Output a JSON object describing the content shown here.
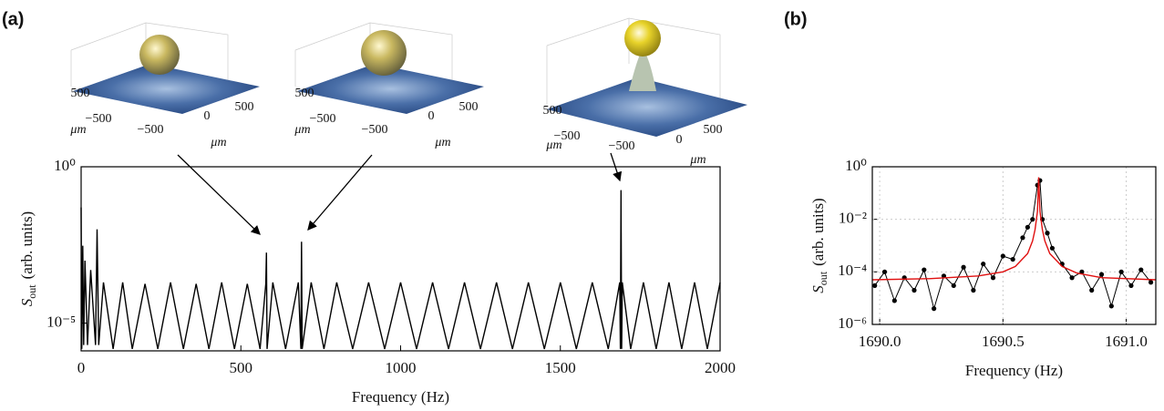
{
  "chart_data": [
    {
      "type": "line",
      "panel_label": "(a)",
      "xlabel": "Frequency (Hz)",
      "ylabel": "S",
      "ylabel_sub": "out",
      "ylabel_unit": "(arb. units)",
      "log_y": true,
      "grid": false,
      "xlim": [
        0,
        2000
      ],
      "xticks": [
        0,
        500,
        1000,
        1500,
        2000
      ],
      "ylim": [
        1.3e-06,
        1
      ],
      "yticks": [
        {
          "value": 1,
          "label": "10⁰"
        },
        {
          "value": 1e-05,
          "label": "10⁻⁵"
        }
      ],
      "series": [
        {
          "color": "#000000",
          "markers": false,
          "x": [
            0,
            2,
            5,
            8,
            12,
            20,
            30,
            45,
            50,
            55,
            70,
            100,
            130,
            160,
            200,
            240,
            280,
            320,
            360,
            400,
            440,
            480,
            520,
            560,
            578,
            580,
            582,
            600,
            640,
            680,
            688,
            690,
            692,
            720,
            760,
            800,
            850,
            900,
            950,
            1000,
            1050,
            1100,
            1150,
            1200,
            1250,
            1300,
            1350,
            1400,
            1450,
            1500,
            1550,
            1600,
            1650,
            1686,
            1688,
            1690,
            1692,
            1694,
            1720,
            1760,
            1800,
            1840,
            1880,
            1920,
            1960,
            2000
          ],
          "values": [
            0.05,
            1.5e-06,
            0.003,
            2e-06,
            0.001,
            2e-06,
            0.0005,
            2e-06,
            0.01,
            2e-06,
            0.0002,
            1.5e-06,
            0.0002,
            1.5e-06,
            0.00018,
            1.5e-06,
            0.0002,
            1.5e-06,
            0.00018,
            1.5e-06,
            0.0002,
            1.5e-06,
            0.00018,
            1.5e-06,
            0.00018,
            0.0018,
            1.5e-06,
            0.0002,
            1.5e-06,
            0.0002,
            1.5e-06,
            0.004,
            1.5e-06,
            0.0002,
            1.5e-06,
            0.0002,
            1.5e-06,
            0.0002,
            1.5e-06,
            0.0002,
            1.5e-06,
            0.0002,
            1.5e-06,
            0.0002,
            1.5e-06,
            0.0002,
            1.5e-06,
            0.0002,
            1.5e-06,
            0.0002,
            1.5e-06,
            0.0002,
            1.5e-06,
            0.0002,
            1.5e-06,
            0.18,
            1.5e-06,
            0.0002,
            1.5e-06,
            0.0002,
            1.5e-06,
            0.0002,
            1.5e-06,
            0.0002,
            1.5e-06,
            0.0002
          ]
        }
      ],
      "insets": [
        {
          "texts": [
            "500",
            "−500",
            "−500",
            "0",
            "500",
            "μm",
            "μm"
          ]
        },
        {
          "texts": [
            "500",
            "−500",
            "−500",
            "0",
            "500",
            "μm",
            "μm"
          ]
        },
        {
          "texts": [
            "500",
            "−500",
            "−500",
            "0",
            "500",
            "μm",
            "μm"
          ]
        }
      ]
    },
    {
      "type": "line",
      "panel_label": "(b)",
      "xlabel": "Frequency (Hz)",
      "ylabel": "S",
      "ylabel_sub": "out",
      "ylabel_unit": "(arb. units)",
      "log_y": true,
      "grid": true,
      "xlim": [
        1689.97,
        1691.12
      ],
      "xticks": [
        {
          "value": 1690,
          "label": "1690.0"
        },
        1690.5,
        {
          "value": 1691,
          "label": "1691.0"
        }
      ],
      "ylim": [
        1e-06,
        1
      ],
      "yticks": [
        {
          "value": 1,
          "label": "10⁰"
        },
        {
          "value": 0.01,
          "label": "10⁻²"
        },
        {
          "value": 0.0001,
          "label": "10⁻⁴"
        },
        {
          "value": 1e-06,
          "label": "10⁻⁶"
        }
      ],
      "series": [
        {
          "color": "#000000",
          "markers": true,
          "x": [
            1689.98,
            1690.02,
            1690.06,
            1690.1,
            1690.14,
            1690.18,
            1690.22,
            1690.26,
            1690.3,
            1690.34,
            1690.38,
            1690.42,
            1690.46,
            1690.5,
            1690.54,
            1690.58,
            1690.6,
            1690.62,
            1690.64,
            1690.65,
            1690.66,
            1690.68,
            1690.7,
            1690.74,
            1690.78,
            1690.82,
            1690.86,
            1690.9,
            1690.94,
            1690.98,
            1691.02,
            1691.06,
            1691.1
          ],
          "values": [
            3e-05,
            0.0001,
            8e-06,
            6e-05,
            2e-05,
            0.00012,
            4e-06,
            7e-05,
            3e-05,
            0.00015,
            2e-05,
            0.0002,
            6e-05,
            0.0004,
            0.0003,
            0.002,
            0.005,
            0.01,
            0.2,
            0.3,
            0.01,
            0.003,
            0.0008,
            0.0002,
            6e-05,
            0.0001,
            2e-05,
            8e-05,
            5e-06,
            0.0001,
            3e-05,
            0.00012,
            4e-05
          ]
        },
        {
          "color": "#e01010",
          "markers": false,
          "x": [
            1689.97,
            1690.2,
            1690.4,
            1690.5,
            1690.55,
            1690.6,
            1690.62,
            1690.63,
            1690.64,
            1690.645,
            1690.65,
            1690.66,
            1690.67,
            1690.69,
            1690.74,
            1690.8,
            1690.9,
            1691.12
          ],
          "values": [
            5e-05,
            5.5e-05,
            7e-05,
            0.0001,
            0.00016,
            0.0005,
            0.0015,
            0.004,
            0.02,
            0.4,
            0.02,
            0.004,
            0.0015,
            0.0005,
            0.00016,
            9e-05,
            6e-05,
            5e-05
          ]
        }
      ]
    }
  ]
}
